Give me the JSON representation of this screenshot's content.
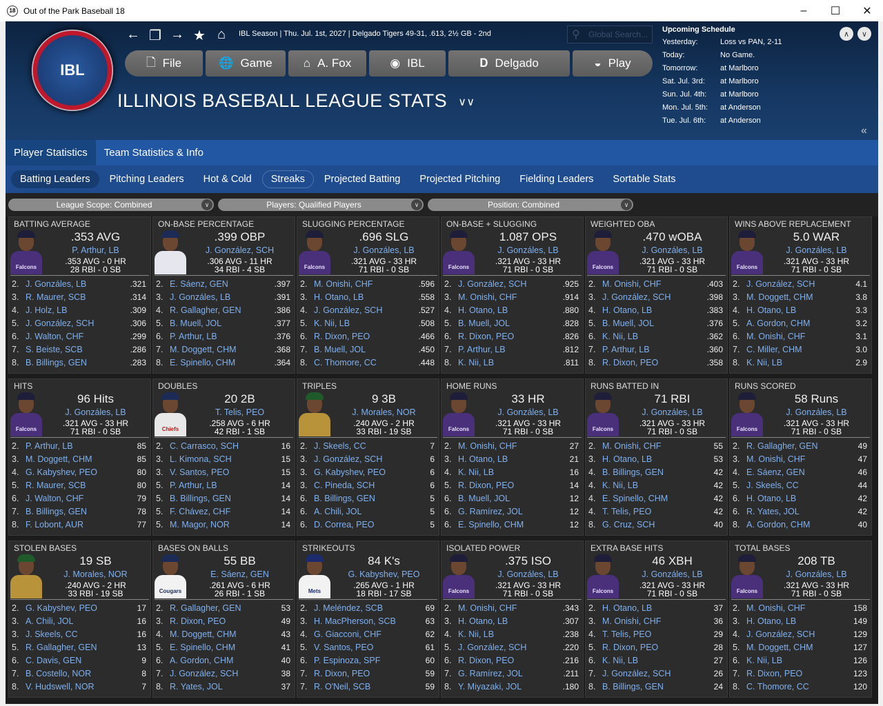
{
  "window": {
    "title": "Out of the Park Baseball 18",
    "icon": "18"
  },
  "header": {
    "logo_text": "IBL",
    "status": "IBL Season  |  Thu. Jul. 1st, 2027  |  Delgado Tigers   49-31, .613, 2½ GB - 2nd",
    "search_placeholder": "Global Search...",
    "menu": [
      {
        "label": "File",
        "icon": "file-icon"
      },
      {
        "label": "Game",
        "icon": "globe-icon"
      },
      {
        "label": "A. Fox",
        "icon": "home-icon"
      },
      {
        "label": "IBL",
        "icon": "league-logo-icon"
      },
      {
        "label": "Delgado",
        "icon": "team-logo-icon"
      },
      {
        "label": "Play",
        "icon": "play-icon"
      }
    ],
    "page_title": "ILLINOIS BASEBALL LEAGUE STATS"
  },
  "schedule": {
    "title": "Upcoming Schedule",
    "rows": [
      {
        "day": "Yesterday:",
        "game": "Loss vs PAN, 2-11"
      },
      {
        "day": "Today:",
        "game": "No Game."
      },
      {
        "day": "Tomorrow:",
        "game": "at Marlboro"
      },
      {
        "day": "Sat. Jul. 3rd:",
        "game": "at Marlboro"
      },
      {
        "day": "Sun. Jul. 4th:",
        "game": "at Marlboro"
      },
      {
        "day": "Mon. Jul. 5th:",
        "game": "at Anderson"
      },
      {
        "day": "Tue. Jul. 6th:",
        "game": "at Anderson"
      }
    ]
  },
  "tabs": [
    {
      "label": "Player Statistics",
      "active": true
    },
    {
      "label": "Team Statistics & Info",
      "active": false
    }
  ],
  "subtabs": [
    {
      "label": "Batting Leaders",
      "active": true
    },
    {
      "label": "Pitching Leaders"
    },
    {
      "label": "Hot & Cold"
    },
    {
      "label": "Streaks",
      "outlined": true
    },
    {
      "label": "Projected Batting"
    },
    {
      "label": "Projected Pitching"
    },
    {
      "label": "Fielding Leaders"
    },
    {
      "label": "Sortable Stats"
    }
  ],
  "filters": [
    {
      "label": "League Scope: Combined"
    },
    {
      "label": "Players: Qualified Players"
    },
    {
      "label": "Position: Combined"
    }
  ],
  "colors": {
    "falcons": "#4a2f7a",
    "chiefs": "#e8e8e8",
    "cougars": "#f0f0f0",
    "gold": "#b8933a",
    "mets": "#f2f2f2",
    "sch": "#e6e6ee"
  },
  "panels": [
    {
      "title": "BATTING AVERAGE",
      "value": ".353 AVG",
      "leader": "P. Arthur, LB",
      "line1": ".353 AVG - 0 HR",
      "line2": "28 RBI - 0 SB",
      "jersey": "falcons",
      "rows": [
        [
          "2.",
          "J. Gonzáles, LB",
          ".321"
        ],
        [
          "3.",
          "R. Maurer, SCB",
          ".314"
        ],
        [
          "4.",
          "J. Holz, LB",
          ".309"
        ],
        [
          "5.",
          "J. González, SCH",
          ".306"
        ],
        [
          "6.",
          "J. Walton, CHF",
          ".299"
        ],
        [
          "7.",
          "S. Beiste, SCB",
          ".286"
        ],
        [
          "8.",
          "B. Billings, GEN",
          ".283"
        ]
      ]
    },
    {
      "title": "ON-BASE PERCENTAGE",
      "value": ".399 OBP",
      "leader": "J. González, SCH",
      "line1": ".306 AVG - 11 HR",
      "line2": "34 RBI - 4 SB",
      "jersey": "sch",
      "rows": [
        [
          "2.",
          "E. Sáenz, GEN",
          ".397"
        ],
        [
          "3.",
          "J. Gonzáles, LB",
          ".391"
        ],
        [
          "4.",
          "R. Gallagher, GEN",
          ".386"
        ],
        [
          "5.",
          "B. Muell, JOL",
          ".377"
        ],
        [
          "6.",
          "P. Arthur, LB",
          ".376"
        ],
        [
          "7.",
          "M. Doggett, CHM",
          ".368"
        ],
        [
          "8.",
          "E. Spinello, CHM",
          ".364"
        ]
      ]
    },
    {
      "title": "SLUGGING PERCENTAGE",
      "value": ".696 SLG",
      "leader": "J. Gonzáles, LB",
      "line1": ".321 AVG - 33 HR",
      "line2": "71 RBI - 0 SB",
      "jersey": "falcons",
      "rows": [
        [
          "2.",
          "M. Onishi, CHF",
          ".596"
        ],
        [
          "3.",
          "H. Otano, LB",
          ".558"
        ],
        [
          "4.",
          "J. González, SCH",
          ".527"
        ],
        [
          "5.",
          "K. Nii, LB",
          ".508"
        ],
        [
          "6.",
          "R. Dixon, PEO",
          ".466"
        ],
        [
          "7.",
          "B. Muell, JOL",
          ".450"
        ],
        [
          "8.",
          "C. Thomore, CC",
          ".448"
        ]
      ]
    },
    {
      "title": "ON-BASE + SLUGGING",
      "value": "1.087 OPS",
      "leader": "J. Gonzáles, LB",
      "line1": ".321 AVG - 33 HR",
      "line2": "71 RBI - 0 SB",
      "jersey": "falcons",
      "rows": [
        [
          "2.",
          "J. González, SCH",
          ".925"
        ],
        [
          "3.",
          "M. Onishi, CHF",
          ".914"
        ],
        [
          "4.",
          "H. Otano, LB",
          ".880"
        ],
        [
          "5.",
          "B. Muell, JOL",
          ".828"
        ],
        [
          "6.",
          "R. Dixon, PEO",
          ".826"
        ],
        [
          "7.",
          "P. Arthur, LB",
          ".812"
        ],
        [
          "8.",
          "K. Nii, LB",
          ".811"
        ]
      ]
    },
    {
      "title": "WEIGHTED OBA",
      "value": ".470 wOBA",
      "leader": "J. Gonzáles, LB",
      "line1": ".321 AVG - 33 HR",
      "line2": "71 RBI - 0 SB",
      "jersey": "falcons",
      "rows": [
        [
          "2.",
          "M. Onishi, CHF",
          ".403"
        ],
        [
          "3.",
          "J. González, SCH",
          ".398"
        ],
        [
          "4.",
          "H. Otano, LB",
          ".383"
        ],
        [
          "5.",
          "B. Muell, JOL",
          ".376"
        ],
        [
          "6.",
          "K. Nii, LB",
          ".362"
        ],
        [
          "7.",
          "P. Arthur, LB",
          ".360"
        ],
        [
          "8.",
          "R. Dixon, PEO",
          ".358"
        ]
      ]
    },
    {
      "title": "WINS ABOVE REPLACEMENT",
      "value": "5.0 WAR",
      "leader": "J. Gonzáles, LB",
      "line1": ".321 AVG - 33 HR",
      "line2": "71 RBI - 0 SB",
      "jersey": "falcons",
      "rows": [
        [
          "2.",
          "J. González, SCH",
          "4.1"
        ],
        [
          "3.",
          "M. Doggett, CHM",
          "3.8"
        ],
        [
          "4.",
          "H. Otano, LB",
          "3.3"
        ],
        [
          "5.",
          "A. Gordon, CHM",
          "3.2"
        ],
        [
          "6.",
          "M. Onishi, CHF",
          "3.1"
        ],
        [
          "7.",
          "C. Miller, CHM",
          "3.0"
        ],
        [
          "8.",
          "K. Nii, LB",
          "2.9"
        ]
      ]
    },
    {
      "title": "HITS",
      "value": "96 Hits",
      "leader": "J. Gonzáles, LB",
      "line1": ".321 AVG - 33 HR",
      "line2": "71 RBI - 0 SB",
      "jersey": "falcons",
      "rows": [
        [
          "2.",
          "P. Arthur, LB",
          "85"
        ],
        [
          "3.",
          "M. Doggett, CHM",
          "85"
        ],
        [
          "4.",
          "G. Kabyshev, PEO",
          "80"
        ],
        [
          "5.",
          "R. Maurer, SCB",
          "80"
        ],
        [
          "6.",
          "J. Walton, CHF",
          "79"
        ],
        [
          "7.",
          "B. Billings, GEN",
          "78"
        ],
        [
          "8.",
          "F. Lobont, AUR",
          "77"
        ]
      ]
    },
    {
      "title": "DOUBLES",
      "value": "20 2B",
      "leader": "T. Telis, PEO",
      "line1": ".258 AVG - 6 HR",
      "line2": "42 RBI - 1 SB",
      "jersey": "chiefs",
      "rows": [
        [
          "2.",
          "C. Carrasco, SCH",
          "16"
        ],
        [
          "3.",
          "L. Kimona, SCH",
          "15"
        ],
        [
          "3.",
          "V. Santos, PEO",
          "15"
        ],
        [
          "5.",
          "P. Arthur, LB",
          "14"
        ],
        [
          "5.",
          "B. Billings, GEN",
          "14"
        ],
        [
          "5.",
          "F. Chávez, CHF",
          "14"
        ],
        [
          "5.",
          "M. Magor, NOR",
          "14"
        ]
      ]
    },
    {
      "title": "TRIPLES",
      "value": "9 3B",
      "leader": "J. Morales, NOR",
      "line1": ".240 AVG - 2 HR",
      "line2": "33 RBI - 19 SB",
      "jersey": "gold",
      "rows": [
        [
          "2.",
          "J. Skeels, CC",
          "7"
        ],
        [
          "3.",
          "J. González, SCH",
          "6"
        ],
        [
          "3.",
          "G. Kabyshev, PEO",
          "6"
        ],
        [
          "3.",
          "C. Pineda, SCH",
          "6"
        ],
        [
          "6.",
          "B. Billings, GEN",
          "5"
        ],
        [
          "6.",
          "A. Chili, JOL",
          "5"
        ],
        [
          "6.",
          "D. Correa, PEO",
          "5"
        ]
      ]
    },
    {
      "title": "HOME RUNS",
      "value": "33 HR",
      "leader": "J. Gonzáles, LB",
      "line1": ".321 AVG - 33 HR",
      "line2": "71 RBI - 0 SB",
      "jersey": "falcons",
      "rows": [
        [
          "2.",
          "M. Onishi, CHF",
          "27"
        ],
        [
          "3.",
          "H. Otano, LB",
          "21"
        ],
        [
          "4.",
          "K. Nii, LB",
          "16"
        ],
        [
          "5.",
          "R. Dixon, PEO",
          "14"
        ],
        [
          "6.",
          "B. Muell, JOL",
          "12"
        ],
        [
          "6.",
          "G. Ramírez, JOL",
          "12"
        ],
        [
          "6.",
          "E. Spinello, CHM",
          "12"
        ]
      ]
    },
    {
      "title": "RUNS BATTED IN",
      "value": "71 RBI",
      "leader": "J. Gonzáles, LB",
      "line1": ".321 AVG - 33 HR",
      "line2": "71 RBI - 0 SB",
      "jersey": "falcons",
      "rows": [
        [
          "2.",
          "M. Onishi, CHF",
          "55"
        ],
        [
          "3.",
          "H. Otano, LB",
          "53"
        ],
        [
          "4.",
          "B. Billings, GEN",
          "42"
        ],
        [
          "4.",
          "K. Nii, LB",
          "42"
        ],
        [
          "4.",
          "E. Spinello, CHM",
          "42"
        ],
        [
          "4.",
          "T. Telis, PEO",
          "42"
        ],
        [
          "8.",
          "G. Cruz, SCH",
          "40"
        ]
      ]
    },
    {
      "title": "RUNS SCORED",
      "value": "58 Runs",
      "leader": "J. Gonzáles, LB",
      "line1": ".321 AVG - 33 HR",
      "line2": "71 RBI - 0 SB",
      "jersey": "falcons",
      "rows": [
        [
          "2.",
          "R. Gallagher, GEN",
          "49"
        ],
        [
          "3.",
          "M. Onishi, CHF",
          "47"
        ],
        [
          "4.",
          "E. Sáenz, GEN",
          "46"
        ],
        [
          "5.",
          "J. Skeels, CC",
          "44"
        ],
        [
          "6.",
          "H. Otano, LB",
          "42"
        ],
        [
          "6.",
          "R. Yates, JOL",
          "42"
        ],
        [
          "8.",
          "A. Gordon, CHM",
          "40"
        ]
      ]
    },
    {
      "title": "STOLEN BASES",
      "value": "19 SB",
      "leader": "J. Morales, NOR",
      "line1": ".240 AVG - 2 HR",
      "line2": "33 RBI - 19 SB",
      "jersey": "gold",
      "rows": [
        [
          "2.",
          "G. Kabyshev, PEO",
          "17"
        ],
        [
          "3.",
          "A. Chili, JOL",
          "16"
        ],
        [
          "3.",
          "J. Skeels, CC",
          "16"
        ],
        [
          "5.",
          "R. Gallagher, GEN",
          "13"
        ],
        [
          "6.",
          "C. Davis, GEN",
          "9"
        ],
        [
          "7.",
          "B. Costello, NOR",
          "8"
        ],
        [
          "8.",
          "V. Hudswell, NOR",
          "7"
        ]
      ]
    },
    {
      "title": "BASES ON BALLS",
      "value": "55 BB",
      "leader": "E. Sáenz, GEN",
      "line1": ".261 AVG - 6 HR",
      "line2": "26 RBI - 1 SB",
      "jersey": "cougars",
      "rows": [
        [
          "2.",
          "R. Gallagher, GEN",
          "53"
        ],
        [
          "3.",
          "R. Dixon, PEO",
          "49"
        ],
        [
          "4.",
          "M. Doggett, CHM",
          "43"
        ],
        [
          "5.",
          "E. Spinello, CHM",
          "41"
        ],
        [
          "6.",
          "A. Gordon, CHM",
          "40"
        ],
        [
          "7.",
          "J. González, SCH",
          "38"
        ],
        [
          "8.",
          "R. Yates, JOL",
          "37"
        ]
      ]
    },
    {
      "title": "STRIKEOUTS",
      "value": "84 K's",
      "leader": "G. Kabyshev, PEO",
      "line1": ".265 AVG - 1 HR",
      "line2": "18 RBI - 17 SB",
      "jersey": "mets",
      "rows": [
        [
          "2.",
          "J. Meléndez, SCB",
          "69"
        ],
        [
          "3.",
          "H. MacPherson, SCB",
          "63"
        ],
        [
          "4.",
          "G. Giacconi, CHF",
          "62"
        ],
        [
          "5.",
          "V. Santos, PEO",
          "61"
        ],
        [
          "6.",
          "P. Espinoza, SPF",
          "60"
        ],
        [
          "7.",
          "R. Dixon, PEO",
          "59"
        ],
        [
          "7.",
          "R. O'Neil, SCB",
          "59"
        ]
      ]
    },
    {
      "title": "ISOLATED POWER",
      "value": ".375 ISO",
      "leader": "J. Gonzáles, LB",
      "line1": ".321 AVG - 33 HR",
      "line2": "71 RBI - 0 SB",
      "jersey": "falcons",
      "rows": [
        [
          "2.",
          "M. Onishi, CHF",
          ".343"
        ],
        [
          "3.",
          "H. Otano, LB",
          ".307"
        ],
        [
          "4.",
          "K. Nii, LB",
          ".238"
        ],
        [
          "5.",
          "J. González, SCH",
          ".220"
        ],
        [
          "6.",
          "R. Dixon, PEO",
          ".216"
        ],
        [
          "7.",
          "G. Ramírez, JOL",
          ".211"
        ],
        [
          "8.",
          "Y. Miyazaki, JOL",
          ".180"
        ]
      ]
    },
    {
      "title": "EXTRA BASE HITS",
      "value": "46 XBH",
      "leader": "J. Gonzáles, LB",
      "line1": ".321 AVG - 33 HR",
      "line2": "71 RBI - 0 SB",
      "jersey": "falcons",
      "rows": [
        [
          "2.",
          "H. Otano, LB",
          "37"
        ],
        [
          "3.",
          "M. Onishi, CHF",
          "36"
        ],
        [
          "4.",
          "T. Telis, PEO",
          "29"
        ],
        [
          "5.",
          "R. Dixon, PEO",
          "28"
        ],
        [
          "6.",
          "K. Nii, LB",
          "27"
        ],
        [
          "7.",
          "J. González, SCH",
          "26"
        ],
        [
          "8.",
          "B. Billings, GEN",
          "24"
        ]
      ]
    },
    {
      "title": "TOTAL BASES",
      "value": "208 TB",
      "leader": "J. Gonzáles, LB",
      "line1": ".321 AVG - 33 HR",
      "line2": "71 RBI - 0 SB",
      "jersey": "falcons",
      "rows": [
        [
          "2.",
          "M. Onishi, CHF",
          "158"
        ],
        [
          "3.",
          "H. Otano, LB",
          "149"
        ],
        [
          "4.",
          "J. González, SCH",
          "129"
        ],
        [
          "5.",
          "M. Doggett, CHM",
          "127"
        ],
        [
          "6.",
          "K. Nii, LB",
          "126"
        ],
        [
          "7.",
          "R. Dixon, PEO",
          "123"
        ],
        [
          "8.",
          "C. Thomore, CC",
          "120"
        ]
      ]
    }
  ]
}
